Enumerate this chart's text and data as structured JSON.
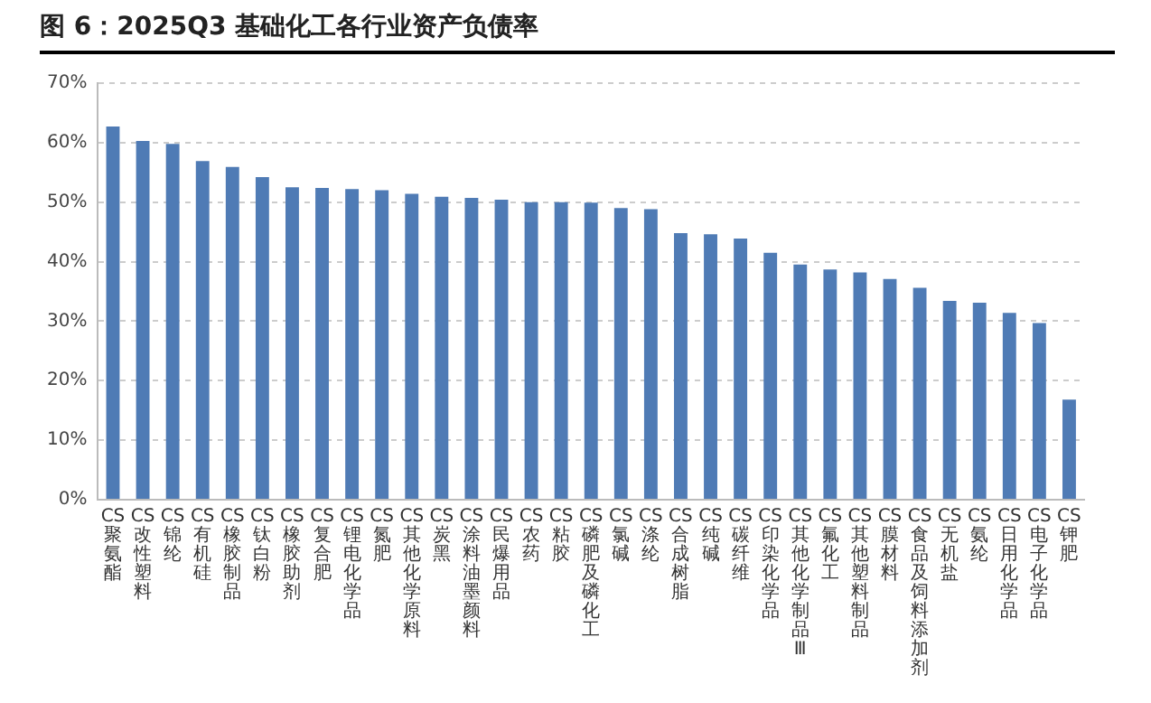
{
  "chart_data": {
    "type": "bar",
    "title": "图 6：2025Q3 基础化工各行业资产负债率",
    "categories": [
      "CS聚氨酯",
      "CS改性塑料",
      "CS锦纶",
      "CS有机硅",
      "CS橡胶制品",
      "CS钛白粉",
      "CS橡胶助剂",
      "CS复合肥",
      "CS锂电化学品",
      "CS氮肥",
      "CS其他化学原料",
      "CS炭黑",
      "CS涂料油墨颜料",
      "CS民爆用品",
      "CS农药",
      "CS粘胶",
      "CS磷肥及磷化工",
      "CS氯碱",
      "CS涤纶",
      "CS合成树脂",
      "CS纯碱",
      "CS碳纤维",
      "CS印染化学品",
      "CS其他化学制品Ⅲ",
      "CS氟化工",
      "CS其他塑料制品",
      "CS膜材料",
      "CS食品及饲料添加剂",
      "CS无机盐",
      "CS氨纶",
      "CS日用化学品",
      "CS电子化学品",
      "CS钾肥"
    ],
    "values": [
      62.7,
      60.3,
      59.8,
      56.9,
      55.9,
      54.2,
      52.5,
      52.4,
      52.2,
      52.0,
      51.4,
      50.9,
      50.7,
      50.4,
      50.0,
      50.0,
      49.9,
      49.0,
      48.8,
      44.8,
      44.6,
      43.9,
      41.5,
      39.5,
      38.7,
      38.2,
      37.1,
      35.6,
      33.4,
      33.1,
      31.4,
      29.7,
      16.8
    ],
    "color": "#4f7bb5",
    "ylim": [
      0,
      70
    ],
    "yticks": [
      {
        "value": 0,
        "label": "0%"
      },
      {
        "value": 10,
        "label": "10%"
      },
      {
        "value": 20,
        "label": "20%"
      },
      {
        "value": 30,
        "label": "30%"
      },
      {
        "value": 40,
        "label": "40%"
      },
      {
        "value": 50,
        "label": "50%"
      },
      {
        "value": 60,
        "label": "60%"
      },
      {
        "value": 70,
        "label": "70%"
      }
    ],
    "grid": "y",
    "legend": false
  }
}
